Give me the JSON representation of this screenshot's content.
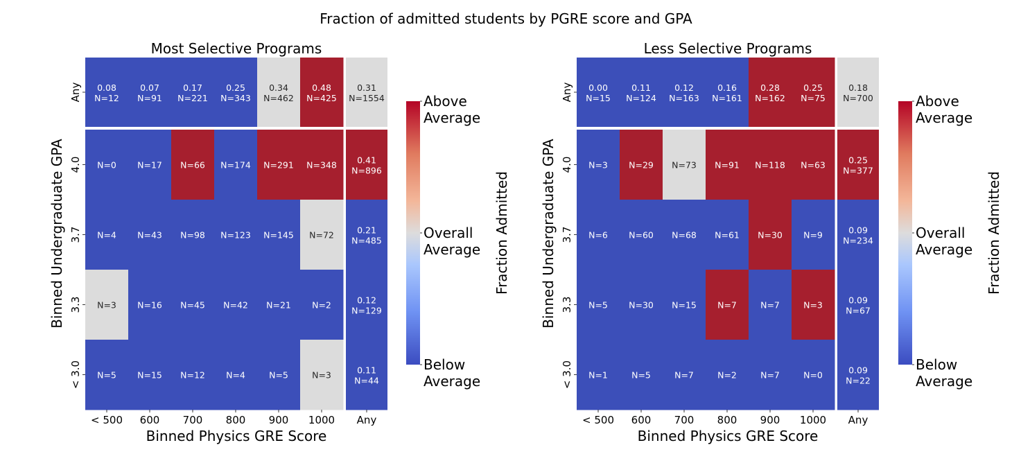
{
  "chart_data": {
    "type": "heatmap",
    "title": "Fraction of admitted students by PGRE score and GPA",
    "colormap": "coolwarm",
    "colors": {
      "above": "#a61f2e",
      "average": "#dcdcdc",
      "below": "#3c4fb9",
      "text_light": "#ffffff",
      "text_dark": "#262626"
    },
    "panels": [
      {
        "title": "Most Selective Programs",
        "xlabel": "Binned Physics GRE Score",
        "ylabel": "Binned Undergraduate GPA",
        "x_categories": [
          "< 500",
          "600",
          "700",
          "800",
          "900",
          "1000"
        ],
        "x_margin_label": "Any",
        "y_categories": [
          "4.0",
          "3.7",
          "3.3",
          "< 3.0"
        ],
        "y_margin_label": "Any",
        "overall": {
          "fraction": "0.31",
          "n": "N=1554",
          "level": "average"
        },
        "top_row": [
          {
            "fraction": "0.08",
            "n": "N=12",
            "level": "below"
          },
          {
            "fraction": "0.07",
            "n": "N=91",
            "level": "below"
          },
          {
            "fraction": "0.17",
            "n": "N=221",
            "level": "below"
          },
          {
            "fraction": "0.25",
            "n": "N=343",
            "level": "below"
          },
          {
            "fraction": "0.34",
            "n": "N=462",
            "level": "average"
          },
          {
            "fraction": "0.48",
            "n": "N=425",
            "level": "above"
          }
        ],
        "right_col": [
          {
            "fraction": "0.41",
            "n": "N=896",
            "level": "above"
          },
          {
            "fraction": "0.21",
            "n": "N=485",
            "level": "below"
          },
          {
            "fraction": "0.12",
            "n": "N=129",
            "level": "below"
          },
          {
            "fraction": "0.11",
            "n": "N=44",
            "level": "below"
          }
        ],
        "cells": [
          [
            {
              "n": "N=0",
              "level": "below"
            },
            {
              "n": "N=17",
              "level": "below"
            },
            {
              "n": "N=66",
              "level": "above"
            },
            {
              "n": "N=174",
              "level": "below"
            },
            {
              "n": "N=291",
              "level": "above"
            },
            {
              "n": "N=348",
              "level": "above"
            }
          ],
          [
            {
              "n": "N=4",
              "level": "below"
            },
            {
              "n": "N=43",
              "level": "below"
            },
            {
              "n": "N=98",
              "level": "below"
            },
            {
              "n": "N=123",
              "level": "below"
            },
            {
              "n": "N=145",
              "level": "below"
            },
            {
              "n": "N=72",
              "level": "average"
            }
          ],
          [
            {
              "n": "N=3",
              "level": "average"
            },
            {
              "n": "N=16",
              "level": "below"
            },
            {
              "n": "N=45",
              "level": "below"
            },
            {
              "n": "N=42",
              "level": "below"
            },
            {
              "n": "N=21",
              "level": "below"
            },
            {
              "n": "N=2",
              "level": "below"
            }
          ],
          [
            {
              "n": "N=5",
              "level": "below"
            },
            {
              "n": "N=15",
              "level": "below"
            },
            {
              "n": "N=12",
              "level": "below"
            },
            {
              "n": "N=4",
              "level": "below"
            },
            {
              "n": "N=5",
              "level": "below"
            },
            {
              "n": "N=3",
              "level": "average"
            }
          ]
        ],
        "colorbar": {
          "label": "Fraction Admitted",
          "ticks": [
            "Above\nAverage",
            "Overall\nAverage",
            "Below\nAverage"
          ]
        }
      },
      {
        "title": "Less Selective Programs",
        "xlabel": "Binned Physics GRE Score",
        "ylabel": "Binned Undergraduate GPA",
        "x_categories": [
          "< 500",
          "600",
          "700",
          "800",
          "900",
          "1000"
        ],
        "x_margin_label": "Any",
        "y_categories": [
          "4.0",
          "3.7",
          "3.3",
          "< 3.0"
        ],
        "y_margin_label": "Any",
        "overall": {
          "fraction": "0.18",
          "n": "N=700",
          "level": "average"
        },
        "top_row": [
          {
            "fraction": "0.00",
            "n": "N=15",
            "level": "below"
          },
          {
            "fraction": "0.11",
            "n": "N=124",
            "level": "below"
          },
          {
            "fraction": "0.12",
            "n": "N=163",
            "level": "below"
          },
          {
            "fraction": "0.16",
            "n": "N=161",
            "level": "below"
          },
          {
            "fraction": "0.28",
            "n": "N=162",
            "level": "above"
          },
          {
            "fraction": "0.25",
            "n": "N=75",
            "level": "above"
          }
        ],
        "right_col": [
          {
            "fraction": "0.25",
            "n": "N=377",
            "level": "above"
          },
          {
            "fraction": "0.09",
            "n": "N=234",
            "level": "below"
          },
          {
            "fraction": "0.09",
            "n": "N=67",
            "level": "below"
          },
          {
            "fraction": "0.09",
            "n": "N=22",
            "level": "below"
          }
        ],
        "cells": [
          [
            {
              "n": "N=3",
              "level": "below"
            },
            {
              "n": "N=29",
              "level": "above"
            },
            {
              "n": "N=73",
              "level": "average"
            },
            {
              "n": "N=91",
              "level": "above"
            },
            {
              "n": "N=118",
              "level": "above"
            },
            {
              "n": "N=63",
              "level": "above"
            }
          ],
          [
            {
              "n": "N=6",
              "level": "below"
            },
            {
              "n": "N=60",
              "level": "below"
            },
            {
              "n": "N=68",
              "level": "below"
            },
            {
              "n": "N=61",
              "level": "below"
            },
            {
              "n": "N=30",
              "level": "above"
            },
            {
              "n": "N=9",
              "level": "below"
            }
          ],
          [
            {
              "n": "N=5",
              "level": "below"
            },
            {
              "n": "N=30",
              "level": "below"
            },
            {
              "n": "N=15",
              "level": "below"
            },
            {
              "n": "N=7",
              "level": "above"
            },
            {
              "n": "N=7",
              "level": "below"
            },
            {
              "n": "N=3",
              "level": "above"
            }
          ],
          [
            {
              "n": "N=1",
              "level": "below"
            },
            {
              "n": "N=5",
              "level": "below"
            },
            {
              "n": "N=7",
              "level": "below"
            },
            {
              "n": "N=2",
              "level": "below"
            },
            {
              "n": "N=7",
              "level": "below"
            },
            {
              "n": "N=0",
              "level": "below"
            }
          ]
        ],
        "colorbar": {
          "label": "Fraction Admitted",
          "ticks": [
            "Above\nAverage",
            "Overall\nAverage",
            "Below\nAverage"
          ]
        }
      }
    ]
  }
}
